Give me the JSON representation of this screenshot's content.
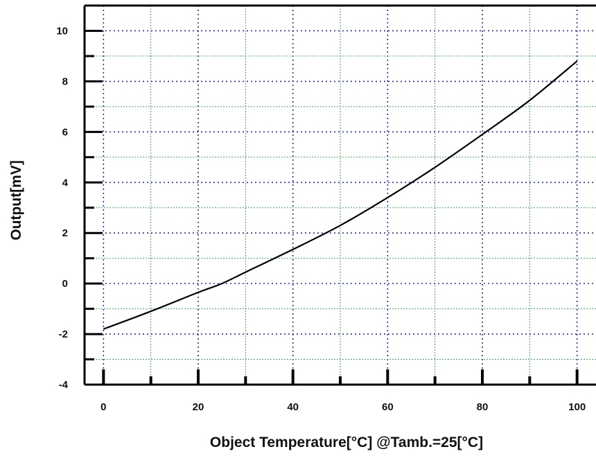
{
  "chart_data": {
    "type": "line",
    "xlabel": "Object Temperature[°C] @Tamb.=25[°C]",
    "ylabel": "Output[mV]",
    "xlim": [
      -4,
      104
    ],
    "ylim": [
      -4,
      11
    ],
    "x_ticks": [
      0,
      20,
      40,
      60,
      80,
      100
    ],
    "y_ticks": [
      -4,
      -2,
      0,
      2,
      4,
      6,
      8,
      10
    ],
    "grid": true,
    "colors": {
      "line": "#000000",
      "grid_major": "#2a2aa8",
      "grid_minor": "#3aaa55",
      "axis": "#000000"
    },
    "series": [
      {
        "x": [
          0,
          10,
          20,
          25,
          30,
          40,
          50,
          60,
          70,
          80,
          90,
          100
        ],
        "y": [
          -1.8,
          -1.1,
          -0.35,
          0.0,
          0.45,
          1.35,
          2.3,
          3.4,
          4.6,
          5.9,
          7.25,
          8.8
        ]
      }
    ]
  }
}
